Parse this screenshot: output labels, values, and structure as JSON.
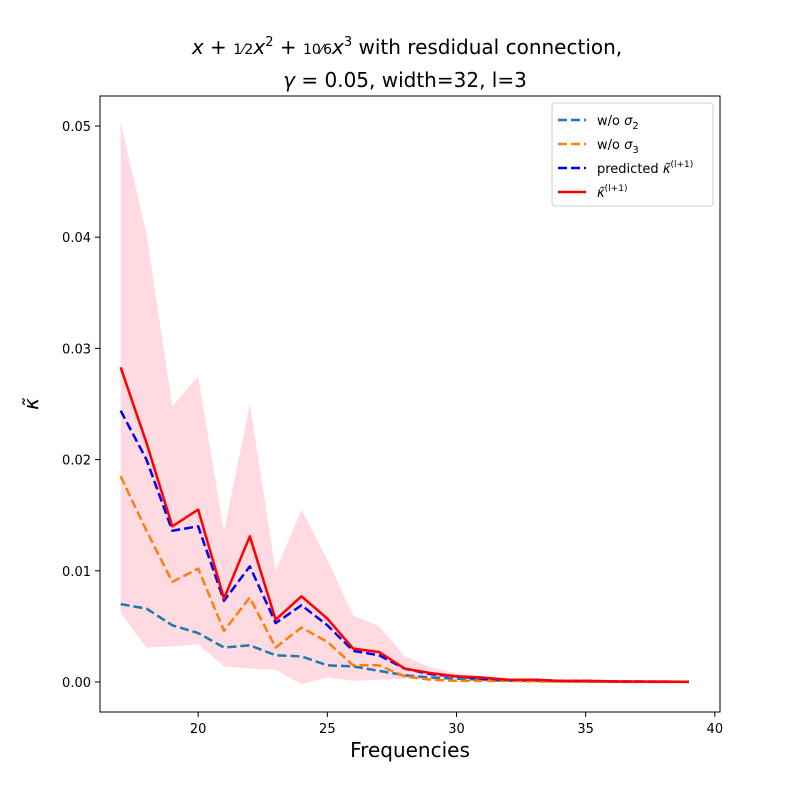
{
  "chart_data": {
    "type": "line",
    "title_line1": "x + ½x² + (10/6)x³ with resdidual connection,",
    "title_line2": "γ = 0.05, width=32, l=3",
    "xlabel": "Frequencies",
    "ylabel": "κ̃",
    "xlim": [
      16.2,
      40.2
    ],
    "ylim": [
      -0.0027,
      0.0527
    ],
    "xticks": [
      20,
      25,
      30,
      35,
      40
    ],
    "yticks": [
      0.0,
      0.01,
      0.02,
      0.03,
      0.04,
      0.05
    ],
    "ytick_labels": [
      "0.00",
      "0.01",
      "0.02",
      "0.03",
      "0.04",
      "0.05"
    ],
    "legend_position": "top-right",
    "x": [
      17,
      18,
      19,
      20,
      21,
      22,
      23,
      24,
      25,
      26,
      27,
      28,
      29,
      30,
      31,
      32,
      33,
      34,
      35,
      36,
      37,
      38,
      39
    ],
    "band": {
      "color": "#ffb6c1",
      "upper": [
        0.0503,
        0.0403,
        0.0248,
        0.0275,
        0.0135,
        0.025,
        0.01,
        0.0155,
        0.011,
        0.006,
        0.005,
        0.0023,
        0.0013,
        0.0008,
        0.0005,
        0.0003,
        0.0002,
        0.0001,
        0.0001,
        0.0001,
        5e-05,
        3e-05,
        2e-05
      ],
      "lower": [
        0.0062,
        0.0031,
        0.0032,
        0.0034,
        0.0014,
        0.0012,
        0.0011,
        -0.0002,
        0.0004,
        0.0001,
        0.0002,
        0.0003,
        0.0002,
        0.0001,
        0.0001,
        5e-05,
        3e-05,
        2e-05,
        1e-05,
        1e-05,
        1e-05,
        1e-05,
        1e-05
      ]
    },
    "series": [
      {
        "name": "w/o σ2",
        "color": "#1f77b4",
        "style": "dashed",
        "values": [
          0.007,
          0.0066,
          0.0051,
          0.0044,
          0.0031,
          0.0033,
          0.0024,
          0.0023,
          0.0015,
          0.0014,
          0.001,
          0.0006,
          0.0004,
          0.0003,
          0.0002,
          0.0001,
          0.0001,
          5e-05,
          4e-05,
          3e-05,
          2e-05,
          1e-05,
          1e-05
        ]
      },
      {
        "name": "w/o σ3",
        "color": "#ff7f0e",
        "style": "dashed",
        "values": [
          0.0185,
          0.0136,
          0.009,
          0.0102,
          0.0046,
          0.0076,
          0.0031,
          0.0049,
          0.0036,
          0.0015,
          0.0015,
          0.0005,
          0.0002,
          0.0001,
          0.0001,
          0.0001,
          5e-05,
          4e-05,
          3e-05,
          2e-05,
          1e-05,
          1e-05,
          1e-05
        ]
      },
      {
        "name": "predicted κ̃^(l+1)",
        "color": "#0000ff",
        "style": "dashed",
        "values": [
          0.0244,
          0.02,
          0.0136,
          0.014,
          0.0073,
          0.0104,
          0.0053,
          0.0069,
          0.0051,
          0.0028,
          0.0024,
          0.0012,
          0.0007,
          0.0005,
          0.0003,
          0.0002,
          0.0002,
          0.0001,
          0.0001,
          5e-05,
          4e-05,
          3e-05,
          2e-05
        ]
      },
      {
        "name": "κ̃^(l+1)",
        "color": "#ff0000",
        "style": "solid",
        "values": [
          0.0283,
          0.0215,
          0.014,
          0.0155,
          0.0075,
          0.0131,
          0.0056,
          0.0077,
          0.0057,
          0.003,
          0.0027,
          0.0012,
          0.0008,
          0.0005,
          0.0004,
          0.0002,
          0.0002,
          0.0001,
          0.0001,
          5e-05,
          4e-05,
          3e-05,
          2e-05
        ]
      }
    ]
  }
}
